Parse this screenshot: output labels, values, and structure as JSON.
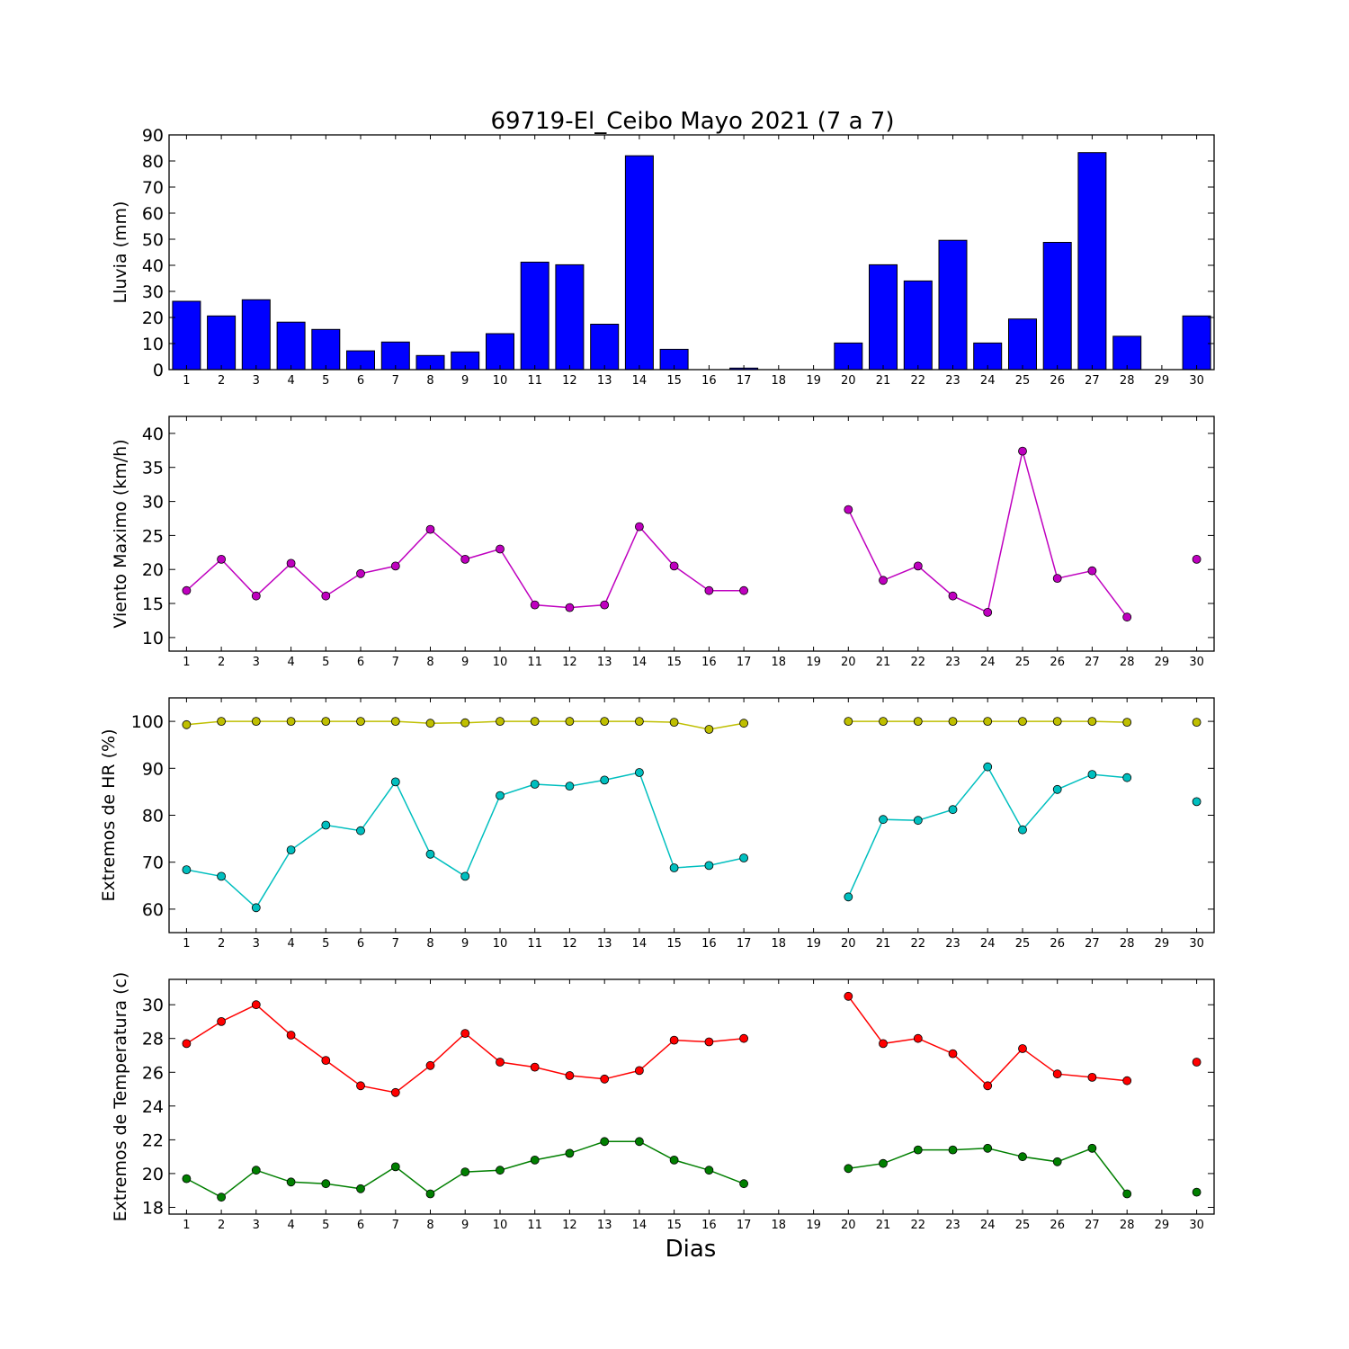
{
  "title": "69719-El_Ceibo Mayo 2021  (7 a 7)",
  "xlabel": "Dias",
  "colors": {
    "rain_bar": "#0000ff",
    "wind": "#bf00bf",
    "hr_max": "#bfbf00",
    "hr_min": "#00bfbf",
    "temp_max": "#ff0000",
    "temp_min": "#007f00"
  },
  "chart_data": [
    {
      "type": "bar",
      "ylabel": "Lluvia (mm)",
      "ylim": [
        0,
        90
      ],
      "yticks": [
        0,
        10,
        20,
        30,
        40,
        50,
        60,
        70,
        80,
        90
      ],
      "categories": [
        "1",
        "2",
        "3",
        "4",
        "5",
        "6",
        "7",
        "8",
        "9",
        "10",
        "11",
        "12",
        "13",
        "14",
        "15",
        "16",
        "17",
        "18",
        "19",
        "20",
        "21",
        "22",
        "23",
        "24",
        "25",
        "26",
        "27",
        "28",
        "29",
        "30"
      ],
      "values": [
        26.2,
        20.6,
        26.8,
        18.2,
        15.4,
        7.2,
        10.6,
        5.4,
        6.8,
        13.8,
        41.2,
        40.2,
        17.4,
        82.0,
        7.8,
        0.0,
        0.6,
        0.0,
        0.0,
        10.2,
        40.2,
        34.0,
        49.6,
        10.2,
        19.4,
        48.8,
        83.2,
        12.8,
        0.0,
        20.6
      ]
    },
    {
      "type": "line",
      "ylabel": "Viento Maximo (km/h)",
      "ylim": [
        8,
        42.5
      ],
      "yticks": [
        10,
        15,
        20,
        25,
        30,
        35,
        40
      ],
      "x": [
        1,
        2,
        3,
        4,
        5,
        6,
        7,
        8,
        9,
        10,
        11,
        12,
        13,
        14,
        15,
        16,
        17,
        18,
        19,
        20,
        21,
        22,
        23,
        24,
        25,
        26,
        27,
        28,
        29,
        30
      ],
      "series": [
        {
          "values": [
            16.9,
            21.5,
            16.1,
            20.9,
            16.1,
            19.4,
            20.5,
            25.9,
            21.5,
            23.0,
            14.8,
            14.4,
            14.8,
            26.3,
            20.5,
            16.9,
            16.9,
            null,
            null,
            28.8,
            18.4,
            20.5,
            16.1,
            13.7,
            37.4,
            18.7,
            19.8,
            13.0,
            null,
            21.5
          ]
        }
      ]
    },
    {
      "type": "line",
      "ylabel": "Extremos de HR (%)",
      "ylim": [
        55,
        105
      ],
      "yticks": [
        60,
        70,
        80,
        90,
        100
      ],
      "x": [
        1,
        2,
        3,
        4,
        5,
        6,
        7,
        8,
        9,
        10,
        11,
        12,
        13,
        14,
        15,
        16,
        17,
        18,
        19,
        20,
        21,
        22,
        23,
        24,
        25,
        26,
        27,
        28,
        29,
        30
      ],
      "series": [
        {
          "values": [
            99.3,
            100,
            100,
            100,
            100,
            100,
            100,
            99.6,
            99.7,
            100,
            100,
            100,
            100,
            100,
            99.8,
            98.3,
            99.6,
            null,
            null,
            100,
            100,
            100,
            100,
            100,
            100,
            100,
            100,
            99.8,
            null,
            99.8
          ]
        },
        {
          "values": [
            68.4,
            67.0,
            60.3,
            72.6,
            77.9,
            76.7,
            87.1,
            71.7,
            67.0,
            84.2,
            86.6,
            86.2,
            87.5,
            89.1,
            68.8,
            69.3,
            70.9,
            null,
            null,
            62.6,
            79.1,
            78.9,
            81.2,
            90.3,
            76.9,
            85.5,
            88.7,
            88.0,
            null,
            82.9
          ]
        }
      ]
    },
    {
      "type": "line",
      "ylabel": "Extremos de Temperatura (c)",
      "ylim": [
        17.6,
        31.5
      ],
      "yticks": [
        18,
        20,
        22,
        24,
        26,
        28,
        30
      ],
      "x": [
        1,
        2,
        3,
        4,
        5,
        6,
        7,
        8,
        9,
        10,
        11,
        12,
        13,
        14,
        15,
        16,
        17,
        18,
        19,
        20,
        21,
        22,
        23,
        24,
        25,
        26,
        27,
        28,
        29,
        30
      ],
      "series": [
        {
          "values": [
            27.7,
            29.0,
            30.0,
            28.2,
            26.7,
            25.2,
            24.8,
            26.4,
            28.3,
            26.6,
            26.3,
            25.8,
            25.6,
            26.1,
            27.9,
            27.8,
            28.0,
            null,
            null,
            30.5,
            27.7,
            28.0,
            27.1,
            25.2,
            27.4,
            25.9,
            25.7,
            25.5,
            null,
            26.6
          ]
        },
        {
          "values": [
            19.7,
            18.6,
            20.2,
            19.5,
            19.4,
            19.1,
            20.4,
            18.8,
            20.1,
            20.2,
            20.8,
            21.2,
            21.9,
            21.9,
            20.8,
            20.2,
            19.4,
            null,
            null,
            20.3,
            20.6,
            21.4,
            21.4,
            21.5,
            21.0,
            20.7,
            21.5,
            18.8,
            null,
            18.9
          ]
        }
      ]
    }
  ]
}
